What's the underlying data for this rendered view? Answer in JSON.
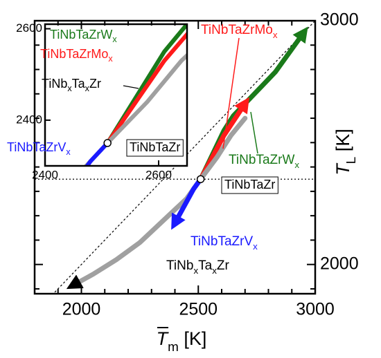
{
  "chart_data": {
    "type": "line",
    "x_label": "Tm [K]",
    "y_label": "TL [K]",
    "xlim": [
      1800,
      3000
    ],
    "ylim": [
      1880,
      3000
    ],
    "xticks": [
      2000,
      2500,
      3000
    ],
    "yticks": [
      2000,
      3000
    ],
    "x_minor_ticks": [
      1900,
      2100,
      2200,
      2300,
      2400,
      2600,
      2700,
      2800,
      2900
    ],
    "y_minor_ticks": [
      1900,
      2100,
      2200,
      2300,
      2400,
      2500,
      2600,
      2700,
      2800,
      2900
    ],
    "diagonal": true,
    "reference_line": 2350,
    "series": [
      {
        "name": "TiNbTaZrWx",
        "color": "#1a7a1a",
        "x": [
          2510,
          2560,
          2610,
          2650,
          2720,
          2830,
          2950
        ],
        "values": [
          2350,
          2450,
          2550,
          2610,
          2680,
          2790,
          2950
        ]
      },
      {
        "name": "TiNbTaZrMox",
        "color": "#ff1a1a",
        "x": [
          2510,
          2560,
          2610,
          2700
        ],
        "values": [
          2350,
          2440,
          2530,
          2660
        ]
      },
      {
        "name": "TiNbxTaxZr",
        "color": "#a0a0a0",
        "x": [
          2700,
          2640,
          2580,
          2510,
          2450,
          2350,
          2250,
          2150,
          2050,
          1965
        ],
        "values": [
          2600,
          2530,
          2440,
          2350,
          2270,
          2180,
          2090,
          2020,
          1960,
          1915
        ]
      },
      {
        "name": "TiNbTaZrVx",
        "color": "#1a1aff",
        "x": [
          2510,
          2480,
          2400
        ],
        "values": [
          2350,
          2310,
          2170
        ]
      }
    ],
    "point": {
      "name": "TiNbTaZr",
      "x": 2510,
      "y": 2350
    },
    "inset": {
      "xlim": [
        2400,
        2650
      ],
      "ylim": [
        2300,
        2610
      ],
      "xticks": [
        2400,
        2600
      ],
      "yticks": [
        2400,
        2600
      ]
    }
  }
}
